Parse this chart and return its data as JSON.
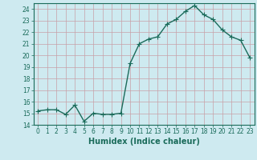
{
  "x": [
    0,
    1,
    2,
    3,
    4,
    5,
    6,
    7,
    8,
    9,
    10,
    11,
    12,
    13,
    14,
    15,
    16,
    17,
    18,
    19,
    20,
    21,
    22,
    23
  ],
  "y": [
    15.2,
    15.3,
    15.3,
    14.9,
    15.7,
    14.3,
    15.0,
    14.9,
    14.9,
    15.0,
    19.3,
    21.0,
    21.4,
    21.6,
    22.7,
    23.1,
    23.8,
    24.3,
    23.5,
    23.1,
    22.2,
    21.6,
    21.3,
    19.8
  ],
  "line_color": "#1a6b5a",
  "marker": "D",
  "marker_size": 2.5,
  "bg_color": "#ceeaf0",
  "major_grid_color": "#c8a0a8",
  "minor_grid_color": "#b8dde8",
  "xlabel": "Humidex (Indice chaleur)",
  "xlim": [
    -0.5,
    23.5
  ],
  "ylim": [
    14,
    24.5
  ],
  "yticks": [
    14,
    15,
    16,
    17,
    18,
    19,
    20,
    21,
    22,
    23,
    24
  ],
  "xticks": [
    0,
    1,
    2,
    3,
    4,
    5,
    6,
    7,
    8,
    9,
    10,
    11,
    12,
    13,
    14,
    15,
    16,
    17,
    18,
    19,
    20,
    21,
    22,
    23
  ],
  "tick_color": "#1a6b5a",
  "label_fontsize": 7,
  "tick_fontsize": 5.5,
  "line_width": 1.0
}
